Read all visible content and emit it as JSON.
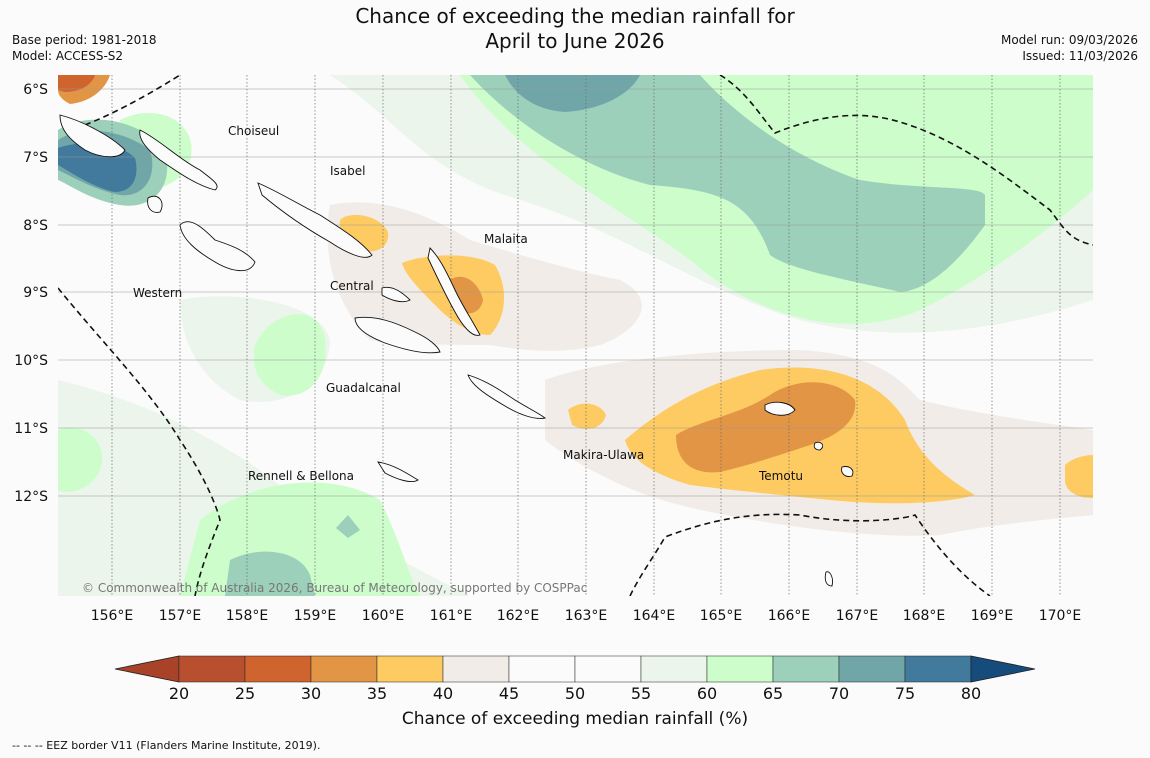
{
  "header": {
    "title_line1": "Chance of exceeding the median rainfall for",
    "title_line2": "April to June 2026",
    "base_period": "Base period: 1981-2018",
    "model": "Model: ACCESS-S2",
    "model_run": "Model run: 09/03/2026",
    "issued": "Issued: 11/03/2026"
  },
  "axes": {
    "lat_labels": [
      "6°S",
      "7°S",
      "8°S",
      "9°S",
      "10°S",
      "11°S",
      "12°S"
    ],
    "lon_labels": [
      "156°E",
      "157°E",
      "158°E",
      "159°E",
      "160°E",
      "161°E",
      "162°E",
      "163°E",
      "164°E",
      "165°E",
      "166°E",
      "167°E",
      "168°E",
      "169°E",
      "170°E"
    ]
  },
  "map": {
    "provinces": [
      "Choiseul",
      "Isabel",
      "Malaita",
      "Central",
      "Western",
      "Guadalcanal",
      "Makira-Ulawa",
      "Rennell & Bellona",
      "Temotu"
    ],
    "copyright": "© Commonwealth of Australia 2026, Bureau of Meteorology, supported by COSPPac"
  },
  "colorbar": {
    "ticks": [
      "20",
      "25",
      "30",
      "35",
      "40",
      "45",
      "50",
      "55",
      "60",
      "65",
      "70",
      "75",
      "80"
    ],
    "colors": [
      "#a8432a",
      "#b84f2f",
      "#d0642f",
      "#e29545",
      "#fecb63",
      "#f1ece8",
      "#fafbfa",
      "#fafbfa",
      "#ebf5eb",
      "#ccfdcb",
      "#9cd0bb",
      "#70a6a8",
      "#417a9d",
      "#164c7c"
    ],
    "label": "Chance of exceeding median rainfall (%)"
  },
  "footnote": "--  --  -- EEZ border V11 (Flanders Marine Institute, 2019)."
}
